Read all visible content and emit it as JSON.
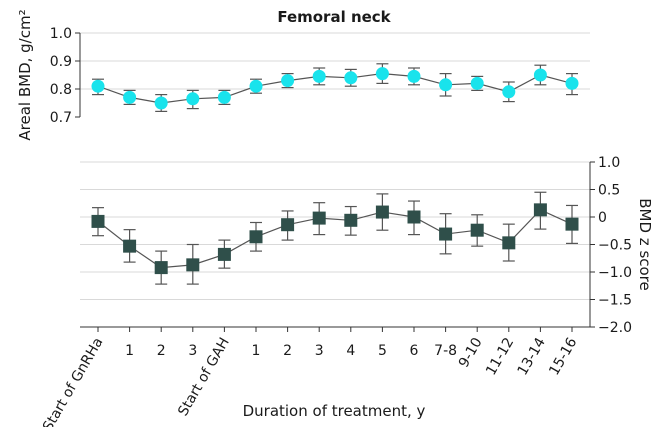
{
  "chart_data": {
    "title": "Femoral neck",
    "xlabel": "Duration of treatment, y",
    "categories": [
      "Start of GnRHa",
      "1",
      "2",
      "3",
      "Start of GAH",
      "1",
      "2",
      "3",
      "4",
      "5",
      "6",
      "7-8",
      "9-10",
      "11-12",
      "13-14",
      "15-16"
    ],
    "colors": {
      "upper_marker": "#19e3ec",
      "lower_marker": "#2f4f4a",
      "line": "#555555",
      "grid": "#d9d9d9"
    },
    "panels": [
      {
        "type": "line",
        "marker": "circle",
        "ylabel": "Areal BMD, g/cm²",
        "ylim": [
          0.7,
          1.0
        ],
        "yticks": [
          "0.7",
          "0.8",
          "0.9",
          "1.0"
        ],
        "ytick_values": [
          0.7,
          0.8,
          0.9,
          1.0
        ],
        "y_axis_side": "left",
        "grid": true,
        "series": [
          {
            "values": [
              0.81,
              0.77,
              0.75,
              0.765,
              0.77,
              0.81,
              0.83,
              0.845,
              0.84,
              0.855,
              0.845,
              0.815,
              0.82,
              0.79,
              0.85,
              0.82
            ],
            "lower": [
              0.78,
              0.745,
              0.72,
              0.73,
              0.745,
              0.785,
              0.805,
              0.815,
              0.81,
              0.82,
              0.815,
              0.775,
              0.795,
              0.755,
              0.815,
              0.78
            ],
            "upper": [
              0.835,
              0.795,
              0.78,
              0.795,
              0.795,
              0.835,
              0.855,
              0.875,
              0.87,
              0.89,
              0.875,
              0.855,
              0.845,
              0.825,
              0.885,
              0.855
            ]
          }
        ]
      },
      {
        "type": "line",
        "marker": "square",
        "ylabel": "BMD z score",
        "ylim": [
          -2.0,
          1.0
        ],
        "yticks": [
          "1.0",
          "0.5",
          "0",
          "−0.5",
          "−1.0",
          "−1.5",
          "−2.0"
        ],
        "ytick_values": [
          1.0,
          0.5,
          0,
          -0.5,
          -1.0,
          -1.5,
          -2.0
        ],
        "y_axis_side": "right",
        "grid": true,
        "series": [
          {
            "values": [
              -0.08,
              -0.53,
              -0.92,
              -0.87,
              -0.68,
              -0.36,
              -0.14,
              -0.02,
              -0.06,
              0.09,
              0.0,
              -0.31,
              -0.24,
              -0.47,
              0.13,
              -0.13
            ],
            "lower": [
              -0.34,
              -0.82,
              -1.22,
              -1.22,
              -0.93,
              -0.62,
              -0.42,
              -0.32,
              -0.33,
              -0.24,
              -0.32,
              -0.67,
              -0.53,
              -0.8,
              -0.22,
              -0.48
            ],
            "upper": [
              0.17,
              -0.23,
              -0.62,
              -0.5,
              -0.42,
              -0.1,
              0.11,
              0.26,
              0.19,
              0.42,
              0.29,
              0.06,
              0.04,
              -0.13,
              0.45,
              0.21
            ]
          }
        ]
      }
    ]
  }
}
